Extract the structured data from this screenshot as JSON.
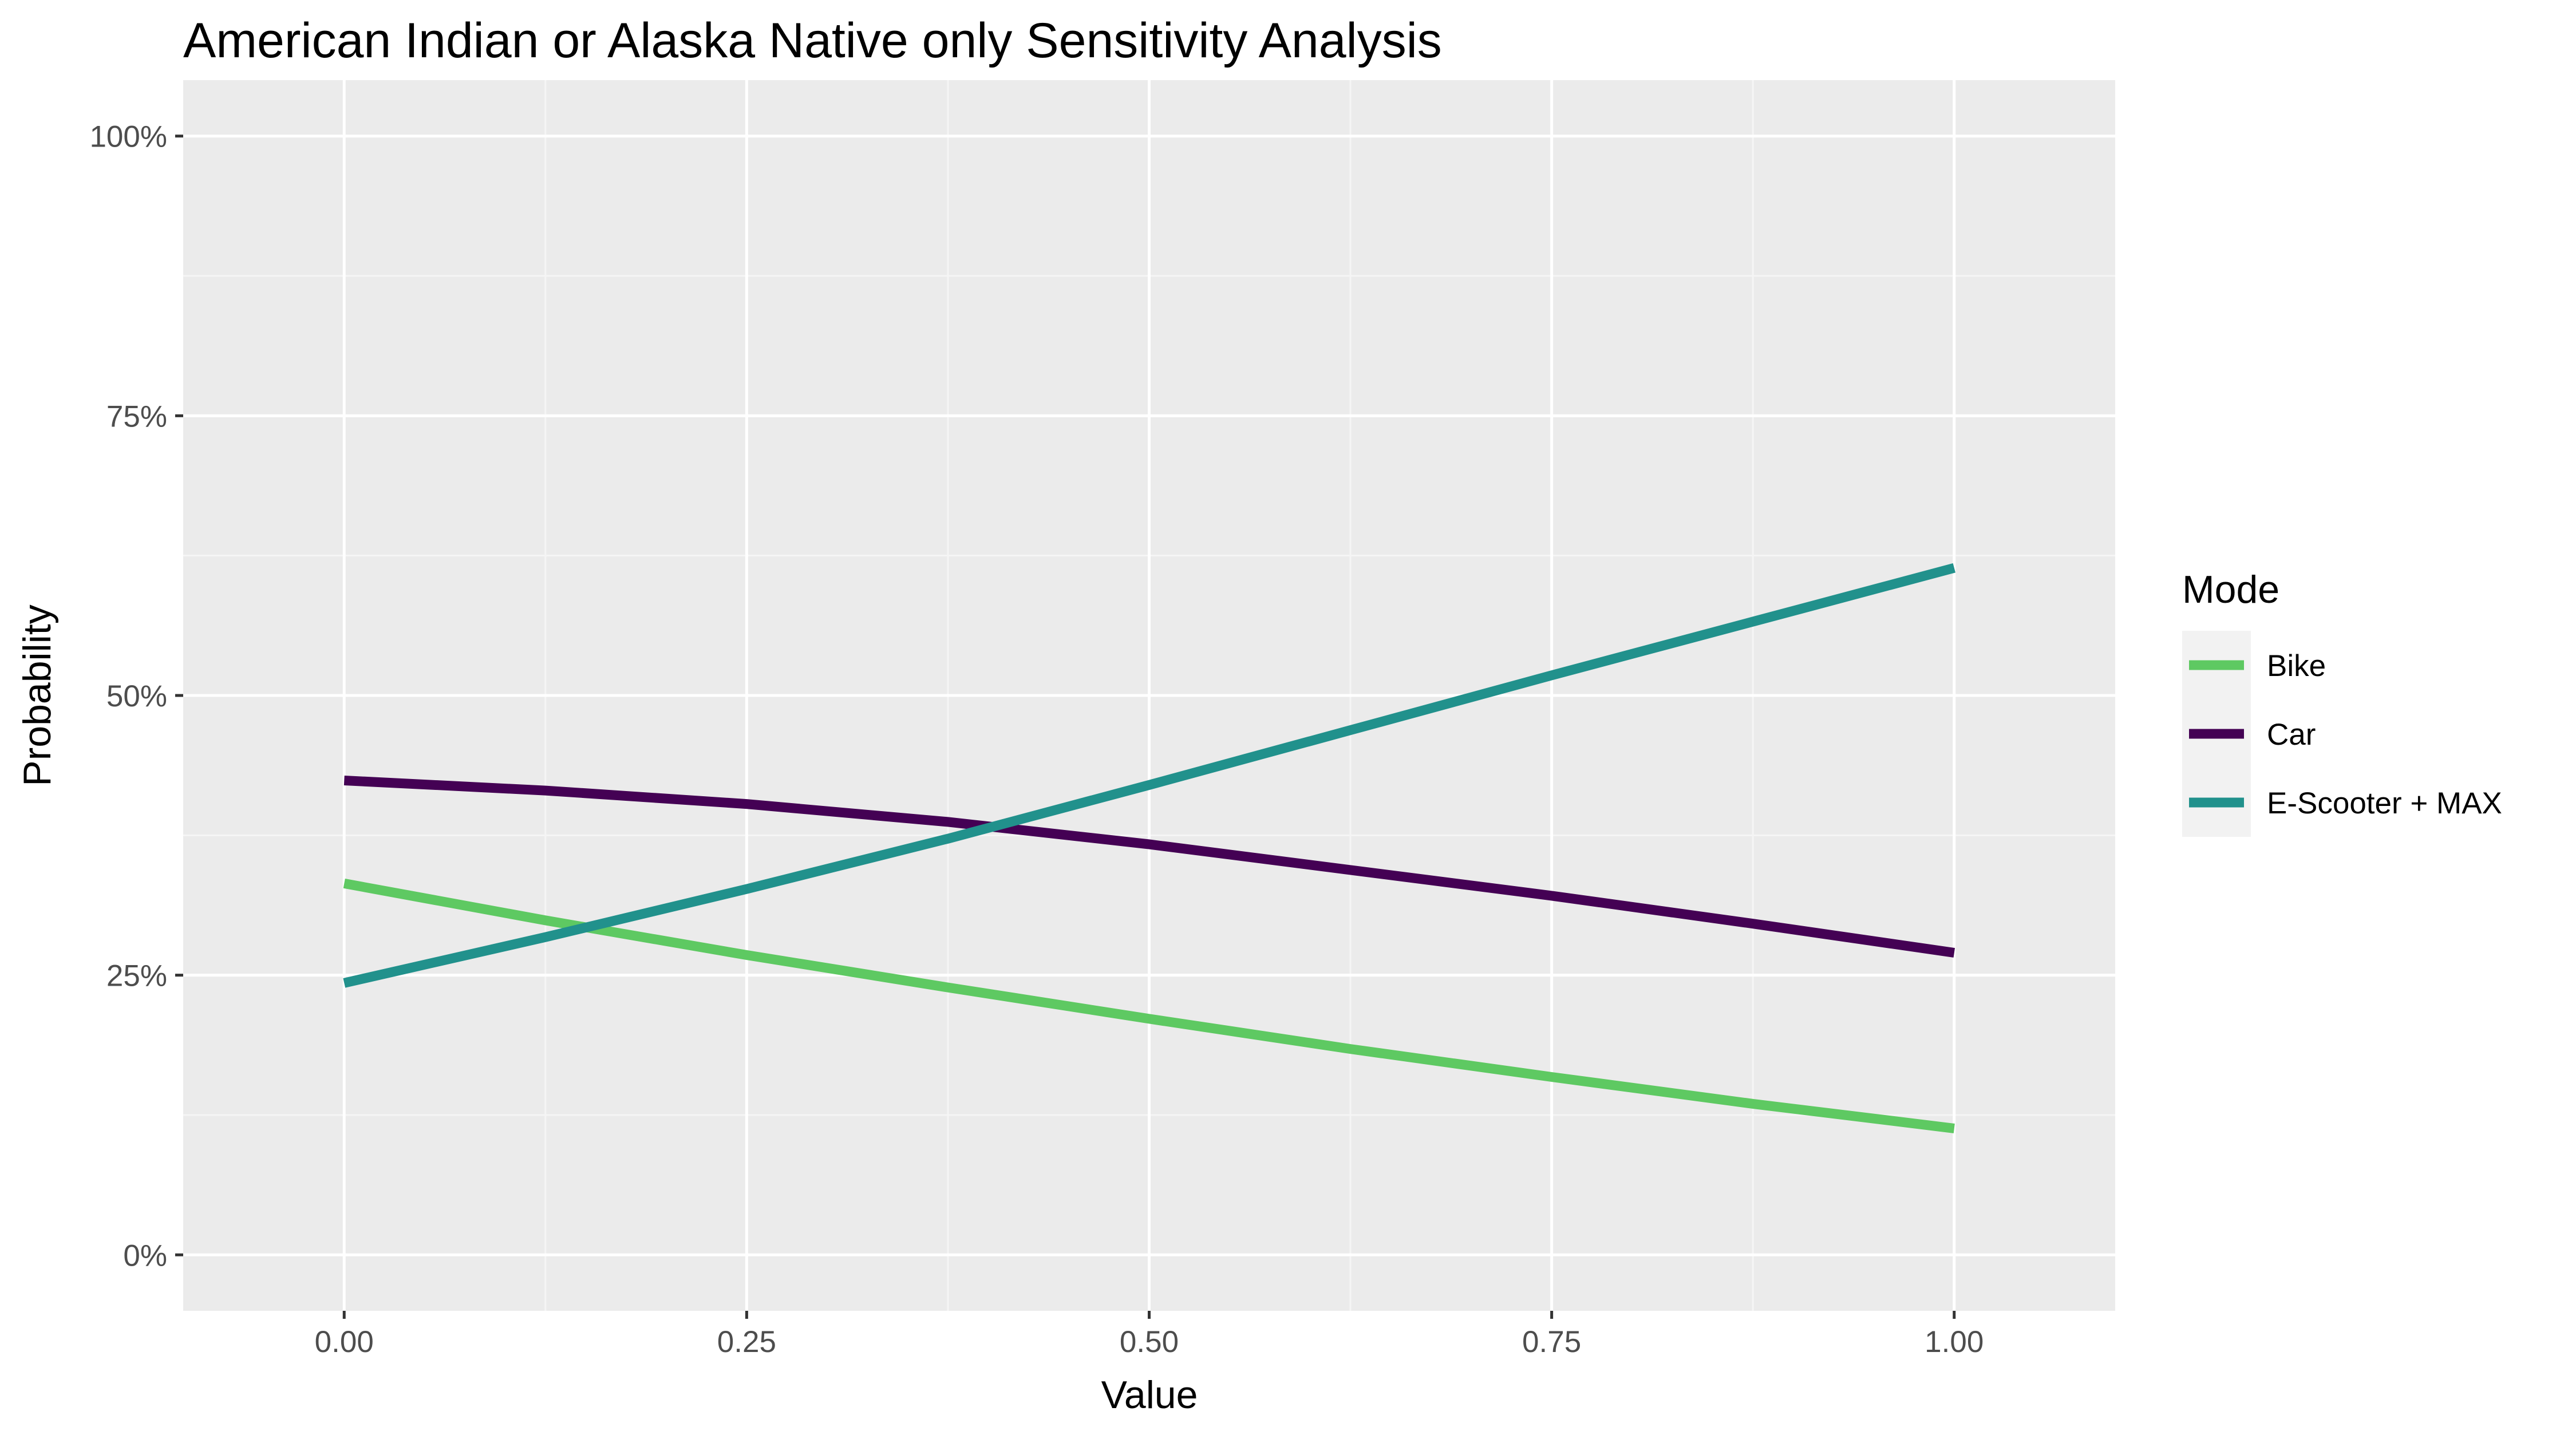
{
  "chart_data": {
    "type": "line",
    "title": "American Indian or Alaska Native only Sensitivity Analysis",
    "xlabel": "Value",
    "ylabel": "Probability",
    "xlim": [
      -0.1,
      1.1
    ],
    "ylim": [
      -0.05,
      1.05
    ],
    "x_ticks": [
      0,
      0.25,
      0.5,
      0.75,
      1.0
    ],
    "x_tick_labels": [
      "0.00",
      "0.25",
      "0.50",
      "0.75",
      "1.00"
    ],
    "y_ticks": [
      0,
      0.25,
      0.5,
      0.75,
      1.0
    ],
    "y_tick_labels": [
      "0%",
      "25%",
      "50%",
      "75%",
      "100%"
    ],
    "grid": true,
    "legend": {
      "title": "Mode",
      "position": "right"
    },
    "x": [
      0,
      0.125,
      0.25,
      0.375,
      0.5,
      0.625,
      0.75,
      0.875,
      1.0
    ],
    "series": [
      {
        "name": "Bike",
        "color": "#5ec962",
        "values": [
          0.332,
          0.299,
          0.268,
          0.239,
          0.211,
          0.184,
          0.159,
          0.135,
          0.113
        ]
      },
      {
        "name": "Car",
        "color": "#440154",
        "values": [
          0.424,
          0.415,
          0.403,
          0.387,
          0.367,
          0.344,
          0.321,
          0.296,
          0.27
        ]
      },
      {
        "name": "E-Scooter + MAX",
        "color": "#21918c",
        "values": [
          0.243,
          0.284,
          0.327,
          0.372,
          0.42,
          0.469,
          0.518,
          0.566,
          0.614
        ]
      }
    ],
    "colors": {
      "panel_background": "#ebebeb",
      "grid_major": "#ffffff",
      "grid_minor": "#f5f5f5",
      "legend_key_background": "#f2f2f2"
    }
  }
}
